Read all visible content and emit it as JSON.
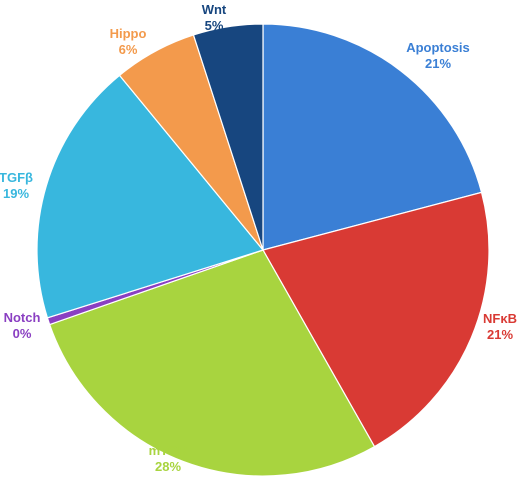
{
  "chart_data": {
    "type": "pie",
    "start_angle_deg": 0,
    "direction": "clockwise",
    "legend": "none",
    "slices": [
      {
        "name": "Apoptosis",
        "value": 21,
        "label": "21%",
        "color": "#3A7FD5"
      },
      {
        "name": "NFκB",
        "value": 21,
        "label": "21%",
        "color": "#D93A34"
      },
      {
        "name": "mTOR",
        "value": 28,
        "label": "28%",
        "color": "#A8D43F"
      },
      {
        "name": "Notch",
        "value": 0.5,
        "label": "0%",
        "color": "#8A3FC2"
      },
      {
        "name": "TGFβ",
        "value": 19,
        "label": "19%",
        "color": "#38B7DE"
      },
      {
        "name": "Hippo",
        "value": 6,
        "label": "6%",
        "color": "#F39A4C"
      },
      {
        "name": "Wnt",
        "value": 5,
        "label": "5%",
        "color": "#17467F"
      }
    ]
  }
}
